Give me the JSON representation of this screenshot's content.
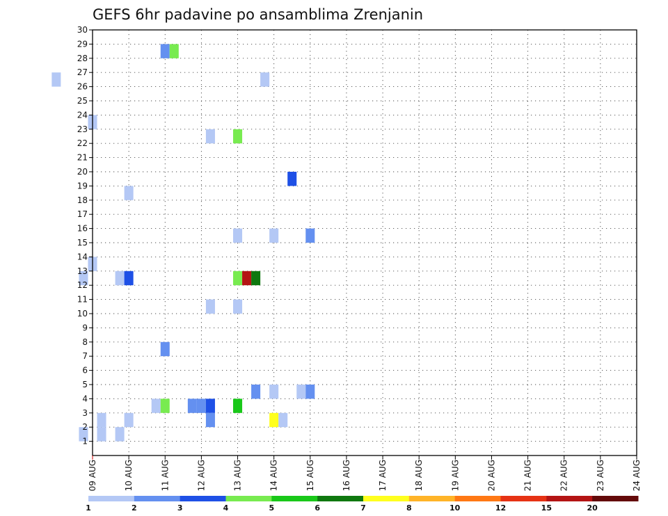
{
  "chart_data": {
    "type": "heatmap",
    "title": "GEFS 6hr padavine po ansamblima Zrenjanin",
    "y_ticks": [
      "1",
      "2",
      "3",
      "4",
      "5",
      "6",
      "7",
      "8",
      "9",
      "10",
      "11",
      "12",
      "13",
      "14",
      "15",
      "16",
      "17",
      "18",
      "19",
      "20",
      "21",
      "22",
      "23",
      "24",
      "25",
      "26",
      "27",
      "28",
      "29",
      "30"
    ],
    "y_range": [
      0,
      30
    ],
    "x_ticks": [
      "09 AUG",
      "10 AUG",
      "11 AUG",
      "12 AUG",
      "13 AUG",
      "14 AUG",
      "15 AUG",
      "16 AUG",
      "17 AUG",
      "18 AUG",
      "19 AUG",
      "20 AUG",
      "21 AUG",
      "22 AUG",
      "23 AUG",
      "24 AUG"
    ],
    "grid": true,
    "colorbar": {
      "labels": [
        "1",
        "2",
        "3",
        "4",
        "5",
        "6",
        "7",
        "8",
        "10",
        "12",
        "15",
        "20"
      ],
      "colors": [
        "#b4c8f5",
        "#6490f0",
        "#1e50e6",
        "#78eb50",
        "#19c819",
        "#0f780f",
        "#ffff1e",
        "#ffb428",
        "#ff7814",
        "#e63214",
        "#b41414",
        "#640a0a"
      ]
    },
    "cells": [
      {
        "day": 8.0,
        "member": 26.5,
        "value": 1.5
      },
      {
        "day": 9.0,
        "member": 23.5,
        "value": 1.5
      },
      {
        "day": 9.0,
        "member": 13.5,
        "value": 1.5
      },
      {
        "day": 8.75,
        "member": 12.5,
        "value": 1.5
      },
      {
        "day": 9.75,
        "member": 12.5,
        "value": 1.5
      },
      {
        "day": 10.0,
        "member": 12.5,
        "value": 3.5
      },
      {
        "day": 10.0,
        "member": 18.5,
        "value": 1.5
      },
      {
        "day": 8.75,
        "member": 1.5,
        "value": 1.5
      },
      {
        "day": 9.25,
        "member": 1.5,
        "value": 1.5
      },
      {
        "day": 9.25,
        "member": 2.5,
        "value": 1.5
      },
      {
        "day": 9.75,
        "member": 1.5,
        "value": 1.5
      },
      {
        "day": 10.0,
        "member": 2.5,
        "value": 1.5
      },
      {
        "day": 11.0,
        "member": 28.5,
        "value": 2.5
      },
      {
        "day": 11.25,
        "member": 28.5,
        "value": 4.5
      },
      {
        "day": 11.0,
        "member": 7.5,
        "value": 2.5
      },
      {
        "day": 10.75,
        "member": 3.5,
        "value": 1.5
      },
      {
        "day": 11.0,
        "member": 3.5,
        "value": 4.5
      },
      {
        "day": 11.75,
        "member": 3.5,
        "value": 2.5
      },
      {
        "day": 12.0,
        "member": 3.5,
        "value": 2.5
      },
      {
        "day": 12.25,
        "member": 3.5,
        "value": 3.5
      },
      {
        "day": 12.25,
        "member": 2.5,
        "value": 2.5
      },
      {
        "day": 12.25,
        "member": 22.5,
        "value": 1.5
      },
      {
        "day": 12.25,
        "member": 10.5,
        "value": 1.5
      },
      {
        "day": 13.0,
        "member": 22.5,
        "value": 4.5
      },
      {
        "day": 13.0,
        "member": 15.5,
        "value": 1.5
      },
      {
        "day": 13.0,
        "member": 12.5,
        "value": 4.5
      },
      {
        "day": 13.0,
        "member": 10.5,
        "value": 1.5
      },
      {
        "day": 13.0,
        "member": 3.5,
        "value": 5.5
      },
      {
        "day": 13.25,
        "member": 12.5,
        "value": 17.5
      },
      {
        "day": 13.5,
        "member": 12.5,
        "value": 6.5
      },
      {
        "day": 13.75,
        "member": 26.5,
        "value": 1.5
      },
      {
        "day": 13.5,
        "member": 4.5,
        "value": 2.5
      },
      {
        "day": 14.0,
        "member": 4.5,
        "value": 1.5
      },
      {
        "day": 14.0,
        "member": 15.5,
        "value": 1.5
      },
      {
        "day": 14.0,
        "member": 2.5,
        "value": 7.5
      },
      {
        "day": 14.25,
        "member": 2.5,
        "value": 1.5
      },
      {
        "day": 14.5,
        "member": 19.5,
        "value": 3.5
      },
      {
        "day": 14.75,
        "member": 4.5,
        "value": 1.5
      },
      {
        "day": 15.0,
        "member": 4.5,
        "value": 2.5
      },
      {
        "day": 15.0,
        "member": 15.5,
        "value": 2.5
      }
    ]
  }
}
